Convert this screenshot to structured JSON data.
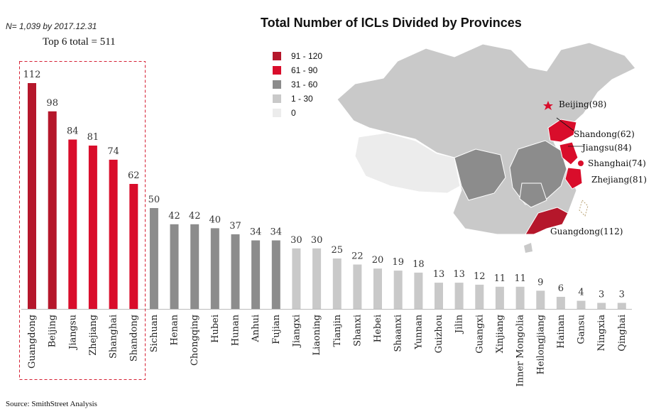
{
  "note": "N= 1,039 by 2017.12.31",
  "top6_label": "Top 6 total = 511",
  "source": "Source: SmithStreet Analysis",
  "colors": {
    "dark_red": "#b5172b",
    "red": "#d90d2b",
    "dark_gray": "#8c8c8c",
    "light_gray": "#c9c9c9",
    "very_light_gray": "#ececec"
  },
  "legend": [
    {
      "label": "91 - 120",
      "color": "#b5172b"
    },
    {
      "label": "61 - 90",
      "color": "#d90d2b"
    },
    {
      "label": "31 - 60",
      "color": "#8c8c8c"
    },
    {
      "label": "1 - 30",
      "color": "#c9c9c9"
    },
    {
      "label": "0",
      "color": "#ececec"
    }
  ],
  "map_labels": [
    "Beijing(98)",
    "Shandong(62)",
    "Jiangsu(84)",
    "Shanghai(74)",
    "Zhejiang(81)",
    "Guangdong(112)"
  ],
  "chart_data": {
    "type": "bar",
    "title": "Total Number of ICLs Divided by Provinces",
    "categories": [
      "Guangdong",
      "Beijing",
      "Jiangsu",
      "Zhejiang",
      "Shanghai",
      "Shandong",
      "Sichuan",
      "Henan",
      "Chongqing",
      "Hubei",
      "Hunan",
      "Anhui",
      "Fujian",
      "Jiangxi",
      "Liaoning",
      "Tianjin",
      "Shanxi",
      "Hebei",
      "Shaanxi",
      "Yunnan",
      "Guizhou",
      "Jilin",
      "Guangxi",
      "Xinjiang",
      "Inner Mongolia",
      "Heilongjiang",
      "Hainan",
      "Gansu",
      "Ningxia",
      "Qinghai"
    ],
    "values": [
      112,
      98,
      84,
      81,
      74,
      62,
      50,
      42,
      42,
      40,
      37,
      34,
      34,
      30,
      30,
      25,
      22,
      20,
      19,
      18,
      13,
      13,
      12,
      11,
      11,
      9,
      6,
      4,
      3,
      3
    ],
    "xlabel": "",
    "ylabel": "",
    "ylim": [
      0,
      120
    ],
    "grid": false,
    "legend_placement": "top-center"
  }
}
